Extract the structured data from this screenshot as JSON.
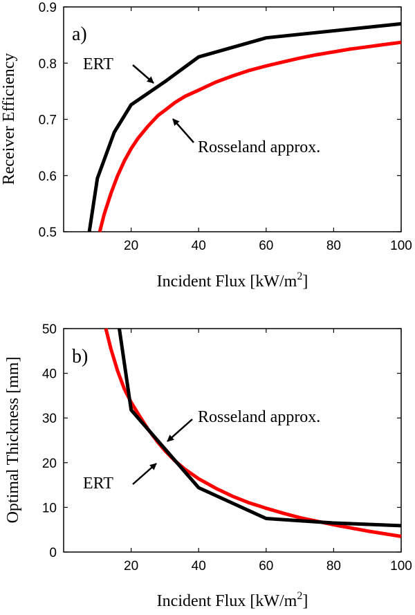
{
  "chart_data": [
    {
      "type": "line",
      "panel_label": "a)",
      "xlabel": "Incident Flux [kW/m",
      "xlabel_sup": "2",
      "xlabel_close": "]",
      "ylabel": "Receiver Efficiency",
      "xlim": [
        0,
        100
      ],
      "ylim": [
        0.5,
        0.9
      ],
      "xticks": [
        "20",
        "40",
        "60",
        "80",
        "100"
      ],
      "yticks": [
        "0.5",
        "0.6",
        "0.7",
        "0.8",
        "0.9"
      ],
      "grid": false,
      "series": [
        {
          "name": "ERT",
          "color": "#000000",
          "points": [
            [
              7.6,
              0.5
            ],
            [
              10,
              0.595
            ],
            [
              15,
              0.677
            ],
            [
              20,
              0.726
            ],
            [
              30,
              0.767
            ],
            [
              40,
              0.811
            ],
            [
              60,
              0.845
            ],
            [
              100,
              0.87
            ]
          ]
        },
        {
          "name": "Rosseland approx.",
          "color": "#ff0000",
          "points": [
            [
              10.7,
              0.5
            ],
            [
              12,
              0.531
            ],
            [
              14,
              0.568
            ],
            [
              16,
              0.6
            ],
            [
              18,
              0.626
            ],
            [
              20,
              0.648
            ],
            [
              22,
              0.666
            ],
            [
              25,
              0.688
            ],
            [
              28,
              0.707
            ],
            [
              30,
              0.716
            ],
            [
              33,
              0.73
            ],
            [
              36,
              0.741
            ],
            [
              40,
              0.752
            ],
            [
              45,
              0.766
            ],
            [
              50,
              0.777
            ],
            [
              55,
              0.787
            ],
            [
              60,
              0.795
            ],
            [
              65,
              0.802
            ],
            [
              70,
              0.809
            ],
            [
              75,
              0.815
            ],
            [
              80,
              0.82
            ],
            [
              85,
              0.825
            ],
            [
              90,
              0.829
            ],
            [
              95,
              0.833
            ],
            [
              100,
              0.837
            ]
          ]
        }
      ],
      "annotations": [
        {
          "text": "ERT",
          "arrow_to": [
            28,
            0.762
          ]
        },
        {
          "text": "Rosseland approx.",
          "arrow_to": [
            30,
            0.712
          ]
        }
      ]
    },
    {
      "type": "line",
      "panel_label": "b)",
      "xlabel": "Incident Flux [kW/m",
      "xlabel_sup": "2",
      "xlabel_close": "]",
      "ylabel": "Optimal Thickness [mm]",
      "xlim": [
        0,
        100
      ],
      "ylim": [
        0,
        50
      ],
      "xticks": [
        "20",
        "40",
        "60",
        "80",
        "100"
      ],
      "yticks": [
        "0",
        "10",
        "20",
        "30",
        "40",
        "50"
      ],
      "grid": false,
      "series": [
        {
          "name": "ERT",
          "color": "#000000",
          "points": [
            [
              16.5,
              50
            ],
            [
              20,
              31.8
            ],
            [
              40,
              14.4
            ],
            [
              60,
              7.5
            ],
            [
              80,
              6.5
            ],
            [
              100,
              5.9
            ]
          ]
        },
        {
          "name": "Rosseland approx.",
          "color": "#ff0000",
          "points": [
            [
              12.5,
              50
            ],
            [
              14,
              45.5
            ],
            [
              16,
              40.5
            ],
            [
              18,
              36.5
            ],
            [
              20,
              33.5
            ],
            [
              22,
              31
            ],
            [
              25,
              27.5
            ],
            [
              28,
              24.5
            ],
            [
              30,
              22.7
            ],
            [
              33,
              20.4
            ],
            [
              36,
              18.5
            ],
            [
              40,
              16.4
            ],
            [
              45,
              14.3
            ],
            [
              50,
              12.5
            ],
            [
              55,
              11
            ],
            [
              60,
              9.8
            ],
            [
              65,
              8.7
            ],
            [
              70,
              7.7
            ],
            [
              75,
              6.9
            ],
            [
              80,
              6.1
            ],
            [
              85,
              5.4
            ],
            [
              90,
              4.7
            ],
            [
              95,
              4.1
            ],
            [
              100,
              3.5
            ]
          ]
        }
      ],
      "annotations": [
        {
          "text": "Rosseland approx.",
          "arrow_to": [
            31,
            23.5
          ]
        },
        {
          "text": "ERT",
          "arrow_to": [
            30.5,
            21.5
          ]
        }
      ]
    }
  ]
}
